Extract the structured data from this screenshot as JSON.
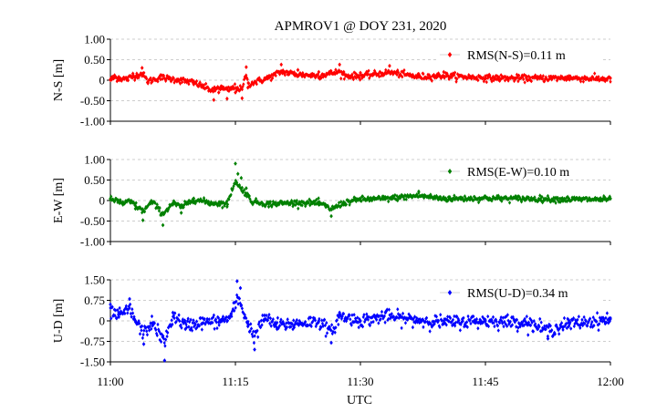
{
  "chart_data": {
    "type": "scatter",
    "title": "APMROV1 @ DOY 231, 2020",
    "xlabel": "UTC",
    "x_ticks": [
      "11:00",
      "11:15",
      "11:30",
      "11:45",
      "12:00"
    ],
    "x_range_minutes": [
      0,
      60
    ],
    "grid": "horizontal dashed",
    "legend_position": "top-right",
    "panels": [
      {
        "id": "ns",
        "ylabel": "N-S [m]",
        "ylim": [
          -1.0,
          1.0
        ],
        "yticks": [
          "1.00",
          "0.50",
          "0",
          "-0.50",
          "-1.00"
        ],
        "ytick_values": [
          1.0,
          0.5,
          0,
          -0.5,
          -1.0
        ],
        "series_name": "RMS(N-S)=0.11 m",
        "color": "#ff0000",
        "rms": 0.11,
        "anchor_points": [
          {
            "x": 0.0,
            "y": 0.02
          },
          {
            "x": 0.5,
            "y": 0.12
          },
          {
            "x": 1.0,
            "y": 0.08
          },
          {
            "x": 2.0,
            "y": 0.05
          },
          {
            "x": 2.7,
            "y": 0.16
          },
          {
            "x": 3.8,
            "y": 0.3
          },
          {
            "x": 4.5,
            "y": -0.05
          },
          {
            "x": 6.0,
            "y": 0.12
          },
          {
            "x": 8.0,
            "y": 0.02
          },
          {
            "x": 10.0,
            "y": -0.1
          },
          {
            "x": 12.4,
            "y": -0.48
          },
          {
            "x": 13.0,
            "y": -0.3
          },
          {
            "x": 14.0,
            "y": -0.45
          },
          {
            "x": 15.0,
            "y": -0.3
          },
          {
            "x": 15.8,
            "y": -0.44
          },
          {
            "x": 16.3,
            "y": 0.32
          },
          {
            "x": 16.5,
            "y": -0.18
          },
          {
            "x": 19.0,
            "y": 0.1
          },
          {
            "x": 20.5,
            "y": 0.38
          },
          {
            "x": 22.5,
            "y": 0.25
          },
          {
            "x": 25.0,
            "y": 0.2
          },
          {
            "x": 27.5,
            "y": 0.38
          },
          {
            "x": 28.0,
            "y": 0.2
          },
          {
            "x": 30.0,
            "y": 0.18
          },
          {
            "x": 33.5,
            "y": 0.35
          },
          {
            "x": 37.0,
            "y": 0.15
          },
          {
            "x": 40.0,
            "y": 0.2
          },
          {
            "x": 45.0,
            "y": 0.1
          },
          {
            "x": 50.0,
            "y": 0.08
          },
          {
            "x": 55.0,
            "y": 0.1
          },
          {
            "x": 60.0,
            "y": 0.05
          }
        ]
      },
      {
        "id": "ew",
        "ylabel": "E-W [m]",
        "ylim": [
          -1.0,
          1.0
        ],
        "yticks": [
          "1.00",
          "0.50",
          "0",
          "-0.50",
          "-1.00"
        ],
        "ytick_values": [
          1.0,
          0.5,
          0,
          -0.5,
          -1.0
        ],
        "series_name": "RMS(E-W)=0.10 m",
        "color": "#008000",
        "rms": 0.1,
        "anchor_points": [
          {
            "x": 0.0,
            "y": 0.05
          },
          {
            "x": 1.5,
            "y": -0.1
          },
          {
            "x": 2.5,
            "y": -0.05
          },
          {
            "x": 3.0,
            "y": -0.2
          },
          {
            "x": 3.9,
            "y": -0.48
          },
          {
            "x": 5.0,
            "y": -0.05
          },
          {
            "x": 6.3,
            "y": -0.6
          },
          {
            "x": 7.5,
            "y": -0.1
          },
          {
            "x": 8.5,
            "y": -0.3
          },
          {
            "x": 10.0,
            "y": 0.05
          },
          {
            "x": 12.0,
            "y": -0.1
          },
          {
            "x": 14.0,
            "y": -0.15
          },
          {
            "x": 15.0,
            "y": 0.9
          },
          {
            "x": 15.3,
            "y": 0.65
          },
          {
            "x": 15.7,
            "y": 0.55
          },
          {
            "x": 16.3,
            "y": 0.3
          },
          {
            "x": 17.0,
            "y": -0.05
          },
          {
            "x": 19.0,
            "y": -0.15
          },
          {
            "x": 22.0,
            "y": -0.1
          },
          {
            "x": 25.0,
            "y": -0.1
          },
          {
            "x": 26.5,
            "y": -0.38
          },
          {
            "x": 28.0,
            "y": -0.1
          },
          {
            "x": 30.0,
            "y": 0.05
          },
          {
            "x": 33.0,
            "y": 0.08
          },
          {
            "x": 37.0,
            "y": 0.22
          },
          {
            "x": 40.0,
            "y": 0.08
          },
          {
            "x": 45.0,
            "y": 0.1
          },
          {
            "x": 50.0,
            "y": 0.08
          },
          {
            "x": 55.0,
            "y": 0.05
          },
          {
            "x": 60.0,
            "y": 0.05
          }
        ]
      },
      {
        "id": "ud",
        "ylabel": "U-D [m]",
        "ylim": [
          -1.5,
          1.5
        ],
        "yticks": [
          "1.50",
          "0.75",
          "0",
          "-0.75",
          "-1.50"
        ],
        "ytick_values": [
          1.5,
          0.75,
          0,
          -0.75,
          -1.5
        ],
        "series_name": "RMS(U-D)=0.34 m",
        "color": "#0000ff",
        "rms": 0.34,
        "anchor_points": [
          {
            "x": 0.0,
            "y": 0.6
          },
          {
            "x": 1.0,
            "y": 0.3
          },
          {
            "x": 2.3,
            "y": 0.8
          },
          {
            "x": 3.0,
            "y": 0.0
          },
          {
            "x": 4.0,
            "y": -0.85
          },
          {
            "x": 5.0,
            "y": -0.1
          },
          {
            "x": 6.5,
            "y": -1.45
          },
          {
            "x": 7.5,
            "y": 0.3
          },
          {
            "x": 9.0,
            "y": -0.3
          },
          {
            "x": 11.0,
            "y": -0.1
          },
          {
            "x": 13.0,
            "y": -0.05
          },
          {
            "x": 14.5,
            "y": 0.25
          },
          {
            "x": 15.2,
            "y": 1.45
          },
          {
            "x": 15.6,
            "y": 1.2
          },
          {
            "x": 16.5,
            "y": -0.2
          },
          {
            "x": 17.3,
            "y": -1.05
          },
          {
            "x": 18.5,
            "y": 0.2
          },
          {
            "x": 20.0,
            "y": -0.3
          },
          {
            "x": 22.0,
            "y": -0.2
          },
          {
            "x": 25.0,
            "y": 0.0
          },
          {
            "x": 26.5,
            "y": -0.8
          },
          {
            "x": 27.5,
            "y": 0.3
          },
          {
            "x": 30.0,
            "y": 0.0
          },
          {
            "x": 33.0,
            "y": 0.3
          },
          {
            "x": 36.0,
            "y": 0.1
          },
          {
            "x": 40.0,
            "y": -0.1
          },
          {
            "x": 45.0,
            "y": 0.0
          },
          {
            "x": 50.0,
            "y": -0.1
          },
          {
            "x": 52.5,
            "y": -0.65
          },
          {
            "x": 55.0,
            "y": -0.2
          },
          {
            "x": 60.0,
            "y": 0.1
          }
        ]
      }
    ]
  }
}
